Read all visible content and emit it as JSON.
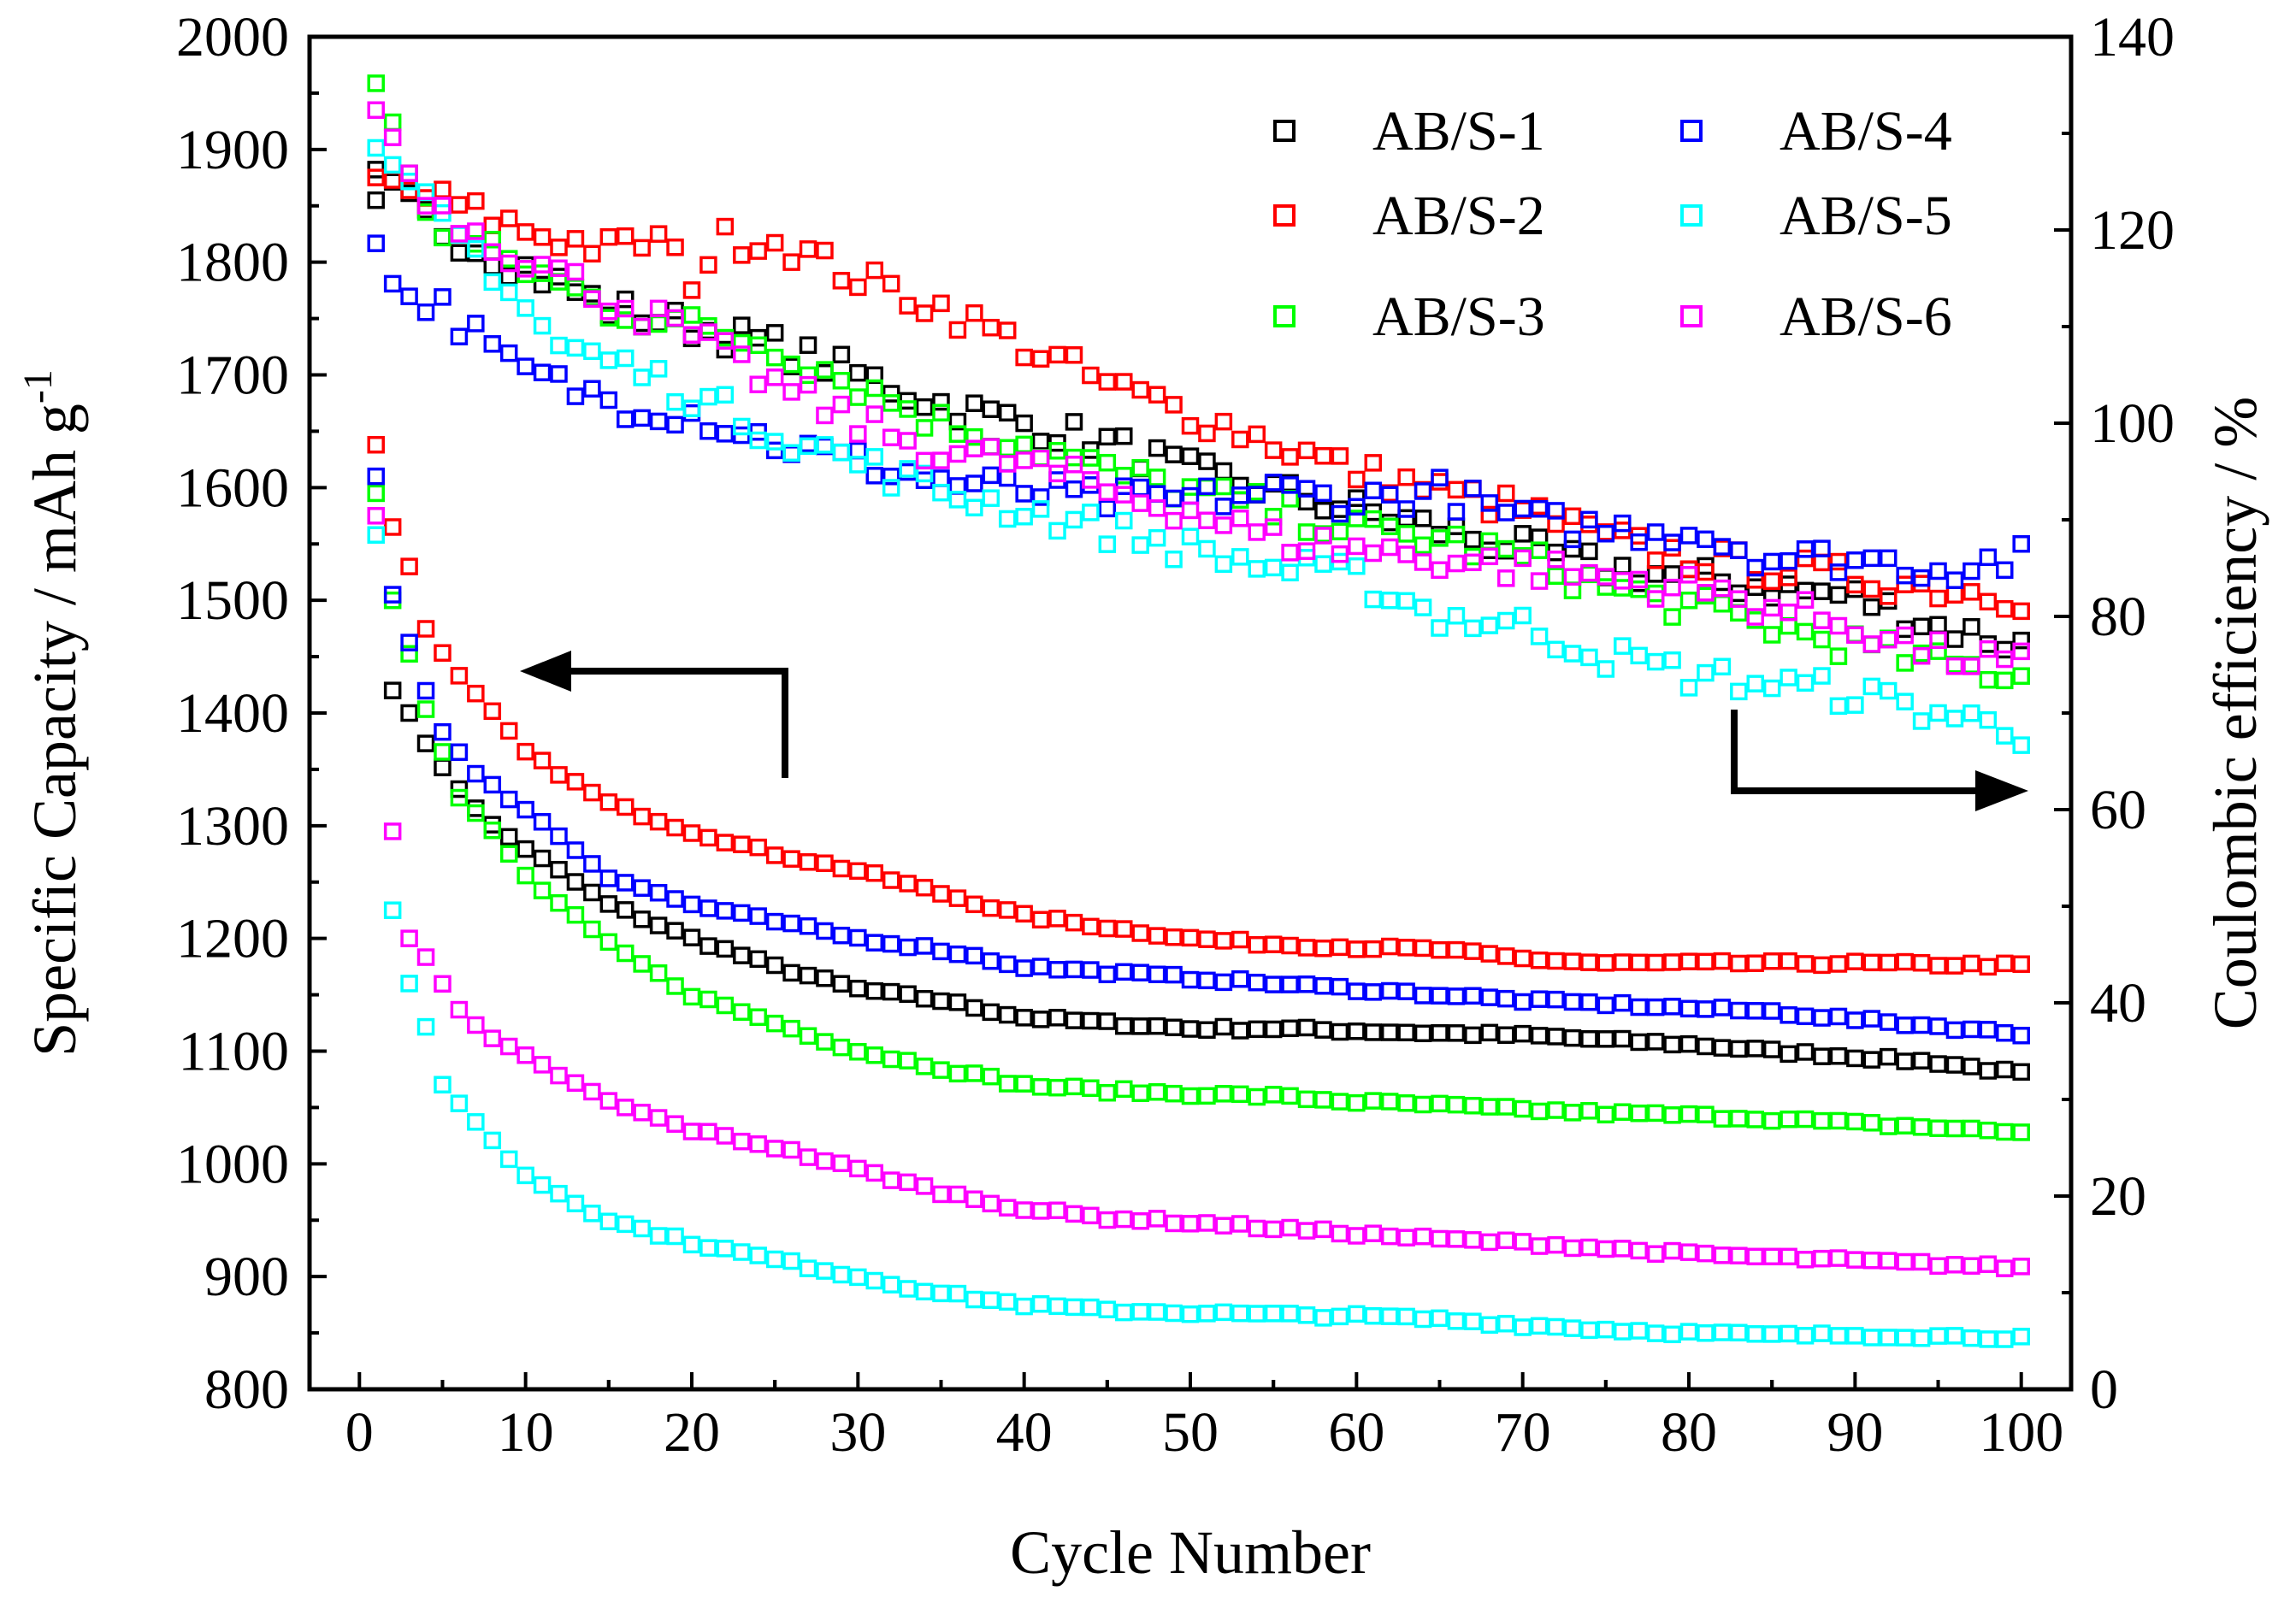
{
  "chart_data": {
    "type": "scatter",
    "xlabel": "Cycle Number",
    "ylabel_left": {
      "main": "Specific Capacity / mAh g",
      "superscript": "-1"
    },
    "ylabel_right": "Coulombic efficiency / %",
    "xlim": [
      -3,
      103
    ],
    "ylim_left": [
      800,
      2000
    ],
    "ylim_right": [
      0,
      140
    ],
    "x_ticks": [
      "0",
      "10",
      "20",
      "30",
      "40",
      "50",
      "60",
      "70",
      "80",
      "90",
      "100"
    ],
    "y_left_ticks": [
      "800",
      "900",
      "1000",
      "1100",
      "1200",
      "1300",
      "1400",
      "1500",
      "1600",
      "1700",
      "1800",
      "1900",
      "2000"
    ],
    "y_right_ticks": [
      "0",
      "20",
      "40",
      "60",
      "80",
      "100",
      "120",
      "140"
    ],
    "marker": "open-square",
    "legend": {
      "position": "top-right",
      "columns": 2
    },
    "annotations": [
      {
        "type": "arrow",
        "meaning": "capacity curves use the left axis",
        "direction": "left"
      },
      {
        "type": "arrow",
        "meaning": "coulombic efficiency uses the right axis",
        "direction": "right"
      }
    ],
    "series": [
      {
        "name": "AB/S-1",
        "color": "#000000",
        "capacity_keypoints": [
          [
            1,
            1855
          ],
          [
            2,
            1420
          ],
          [
            3,
            1400
          ],
          [
            5,
            1350
          ],
          [
            8,
            1300
          ],
          [
            10,
            1280
          ],
          [
            15,
            1230
          ],
          [
            20,
            1200
          ],
          [
            25,
            1175
          ],
          [
            30,
            1155
          ],
          [
            35,
            1145
          ],
          [
            40,
            1130
          ],
          [
            45,
            1125
          ],
          [
            50,
            1120
          ],
          [
            55,
            1120
          ],
          [
            60,
            1118
          ],
          [
            65,
            1116
          ],
          [
            70,
            1114
          ],
          [
            75,
            1110
          ],
          [
            80,
            1106
          ],
          [
            85,
            1100
          ],
          [
            90,
            1095
          ],
          [
            95,
            1090
          ],
          [
            100,
            1080
          ]
        ],
        "efficiency_keypoints": [
          [
            1,
            125
          ],
          [
            5,
            120
          ],
          [
            10,
            116
          ],
          [
            15,
            112
          ],
          [
            20,
            110
          ],
          [
            25,
            108
          ],
          [
            30,
            105
          ],
          [
            35,
            102
          ],
          [
            40,
            100
          ],
          [
            45,
            98
          ],
          [
            50,
            95
          ],
          [
            55,
            93
          ],
          [
            60,
            91
          ],
          [
            65,
            89
          ],
          [
            70,
            87
          ],
          [
            75,
            85
          ],
          [
            80,
            84
          ],
          [
            85,
            83
          ],
          [
            90,
            82
          ],
          [
            95,
            79
          ],
          [
            100,
            77
          ]
        ]
      },
      {
        "name": "AB/S-2",
        "color": "#ff0000",
        "capacity_keypoints": [
          [
            1,
            1638
          ],
          [
            2,
            1565
          ],
          [
            3,
            1530
          ],
          [
            4,
            1475
          ],
          [
            5,
            1455
          ],
          [
            6,
            1432
          ],
          [
            8,
            1400
          ],
          [
            10,
            1365
          ],
          [
            15,
            1320
          ],
          [
            20,
            1295
          ],
          [
            25,
            1275
          ],
          [
            30,
            1260
          ],
          [
            35,
            1240
          ],
          [
            40,
            1220
          ],
          [
            45,
            1210
          ],
          [
            50,
            1200
          ],
          [
            55,
            1195
          ],
          [
            60,
            1192
          ],
          [
            65,
            1190
          ],
          [
            70,
            1182
          ],
          [
            75,
            1178
          ],
          [
            80,
            1178
          ],
          [
            85,
            1178
          ],
          [
            90,
            1178
          ],
          [
            95,
            1177
          ],
          [
            100,
            1176
          ]
        ],
        "efficiency_keypoints": [
          [
            1,
            125
          ],
          [
            5,
            123
          ],
          [
            10,
            120
          ],
          [
            15,
            118
          ],
          [
            18,
            119
          ],
          [
            20,
            115
          ],
          [
            22,
            119
          ],
          [
            25,
            119
          ],
          [
            30,
            115
          ],
          [
            35,
            112
          ],
          [
            40,
            108
          ],
          [
            45,
            104
          ],
          [
            50,
            101
          ],
          [
            55,
            98
          ],
          [
            60,
            95
          ],
          [
            65,
            93
          ],
          [
            70,
            91
          ],
          [
            75,
            88
          ],
          [
            80,
            86
          ],
          [
            85,
            85
          ],
          [
            90,
            84
          ],
          [
            95,
            83
          ],
          [
            100,
            82
          ]
        ]
      },
      {
        "name": "AB/S-3",
        "color": "#00ff00",
        "capacity_keypoints": [
          [
            1,
            1595
          ],
          [
            2,
            1500
          ],
          [
            4,
            1405
          ],
          [
            6,
            1325
          ],
          [
            8,
            1295
          ],
          [
            10,
            1255
          ],
          [
            15,
            1195
          ],
          [
            20,
            1150
          ],
          [
            25,
            1125
          ],
          [
            30,
            1100
          ],
          [
            35,
            1085
          ],
          [
            40,
            1070
          ],
          [
            45,
            1065
          ],
          [
            50,
            1062
          ],
          [
            55,
            1060
          ],
          [
            60,
            1055
          ],
          [
            65,
            1052
          ],
          [
            70,
            1048
          ],
          [
            75,
            1045
          ],
          [
            80,
            1043
          ],
          [
            85,
            1040
          ],
          [
            90,
            1036
          ],
          [
            95,
            1032
          ],
          [
            100,
            1028
          ]
        ],
        "efficiency_keypoints": [
          [
            1,
            136
          ],
          [
            3,
            125
          ],
          [
            5,
            120
          ],
          [
            10,
            116
          ],
          [
            15,
            112
          ],
          [
            20,
            110
          ],
          [
            25,
            108
          ],
          [
            30,
            104
          ],
          [
            35,
            100
          ],
          [
            40,
            98
          ],
          [
            45,
            95
          ],
          [
            50,
            93
          ],
          [
            55,
            91
          ],
          [
            60,
            89
          ],
          [
            65,
            88
          ],
          [
            70,
            86
          ],
          [
            75,
            83
          ],
          [
            80,
            81
          ],
          [
            85,
            79
          ],
          [
            90,
            77
          ],
          [
            95,
            75
          ],
          [
            100,
            74
          ]
        ]
      },
      {
        "name": "AB/S-4",
        "color": "#0000ff",
        "capacity_keypoints": [
          [
            1,
            1610
          ],
          [
            2,
            1505
          ],
          [
            4,
            1420
          ],
          [
            5,
            1385
          ],
          [
            7,
            1345
          ],
          [
            10,
            1315
          ],
          [
            15,
            1255
          ],
          [
            20,
            1230
          ],
          [
            25,
            1215
          ],
          [
            30,
            1200
          ],
          [
            35,
            1190
          ],
          [
            40,
            1175
          ],
          [
            45,
            1170
          ],
          [
            50,
            1165
          ],
          [
            55,
            1160
          ],
          [
            60,
            1155
          ],
          [
            65,
            1150
          ],
          [
            70,
            1145
          ],
          [
            75,
            1142
          ],
          [
            80,
            1138
          ],
          [
            85,
            1135
          ],
          [
            90,
            1128
          ],
          [
            95,
            1122
          ],
          [
            100,
            1115
          ]
        ],
        "efficiency_keypoints": [
          [
            1,
            120
          ],
          [
            2,
            114
          ],
          [
            5,
            112
          ],
          [
            9,
            106
          ],
          [
            12,
            104
          ],
          [
            16,
            102
          ],
          [
            20,
            101
          ],
          [
            25,
            98
          ],
          [
            30,
            96
          ],
          [
            35,
            94
          ],
          [
            40,
            93
          ],
          [
            45,
            92
          ],
          [
            50,
            92
          ],
          [
            55,
            93
          ],
          [
            60,
            92
          ],
          [
            65,
            93
          ],
          [
            70,
            90
          ],
          [
            75,
            89
          ],
          [
            80,
            89
          ],
          [
            85,
            86
          ],
          [
            90,
            86
          ],
          [
            95,
            85
          ],
          [
            100,
            86
          ]
        ]
      },
      {
        "name": "AB/S-5",
        "color": "#00ffff",
        "capacity_keypoints": [
          [
            1,
            1558
          ],
          [
            2,
            1225
          ],
          [
            3,
            1160
          ],
          [
            4,
            1120
          ],
          [
            5,
            1070
          ],
          [
            6,
            1055
          ],
          [
            8,
            1020
          ],
          [
            10,
            990
          ],
          [
            15,
            950
          ],
          [
            20,
            930
          ],
          [
            25,
            915
          ],
          [
            30,
            900
          ],
          [
            35,
            885
          ],
          [
            40,
            875
          ],
          [
            45,
            870
          ],
          [
            50,
            868
          ],
          [
            55,
            866
          ],
          [
            60,
            865
          ],
          [
            65,
            862
          ],
          [
            70,
            857
          ],
          [
            75,
            853
          ],
          [
            80,
            850
          ],
          [
            85,
            848
          ],
          [
            90,
            848
          ],
          [
            95,
            847
          ],
          [
            100,
            846
          ]
        ],
        "efficiency_keypoints": [
          [
            1,
            127
          ],
          [
            3,
            124
          ],
          [
            5,
            121
          ],
          [
            8,
            116
          ],
          [
            12,
            108
          ],
          [
            16,
            106
          ],
          [
            20,
            103
          ],
          [
            25,
            99
          ],
          [
            30,
            96
          ],
          [
            35,
            93
          ],
          [
            40,
            91
          ],
          [
            45,
            89
          ],
          [
            50,
            87
          ],
          [
            55,
            85
          ],
          [
            60,
            84
          ],
          [
            65,
            80
          ],
          [
            70,
            79
          ],
          [
            75,
            76
          ],
          [
            80,
            74
          ],
          [
            85,
            73
          ],
          [
            90,
            72
          ],
          [
            95,
            70
          ],
          [
            100,
            68
          ]
        ]
      },
      {
        "name": "AB/S-6",
        "color": "#ff00ff",
        "capacity_keypoints": [
          [
            1,
            1575
          ],
          [
            2,
            1295
          ],
          [
            3,
            1200
          ],
          [
            4,
            1185
          ],
          [
            5,
            1160
          ],
          [
            6,
            1135
          ],
          [
            8,
            1110
          ],
          [
            10,
            1095
          ],
          [
            15,
            1055
          ],
          [
            20,
            1030
          ],
          [
            25,
            1015
          ],
          [
            30,
            995
          ],
          [
            35,
            975
          ],
          [
            40,
            960
          ],
          [
            45,
            952
          ],
          [
            50,
            948
          ],
          [
            55,
            943
          ],
          [
            60,
            938
          ],
          [
            65,
            933
          ],
          [
            70,
            930
          ],
          [
            75,
            925
          ],
          [
            80,
            920
          ],
          [
            85,
            917
          ],
          [
            90,
            914
          ],
          [
            95,
            911
          ],
          [
            100,
            908
          ]
        ],
        "efficiency_keypoints": [
          [
            1,
            133
          ],
          [
            3,
            126
          ],
          [
            5,
            122
          ],
          [
            10,
            117
          ],
          [
            15,
            113
          ],
          [
            20,
            109
          ],
          [
            25,
            104
          ],
          [
            30,
            100
          ],
          [
            35,
            97
          ],
          [
            40,
            96
          ],
          [
            45,
            93
          ],
          [
            50,
            91
          ],
          [
            55,
            88
          ],
          [
            60,
            87
          ],
          [
            65,
            86
          ],
          [
            70,
            85
          ],
          [
            75,
            84
          ],
          [
            80,
            83
          ],
          [
            85,
            81
          ],
          [
            90,
            79
          ],
          [
            95,
            76
          ],
          [
            100,
            75
          ]
        ]
      }
    ]
  }
}
